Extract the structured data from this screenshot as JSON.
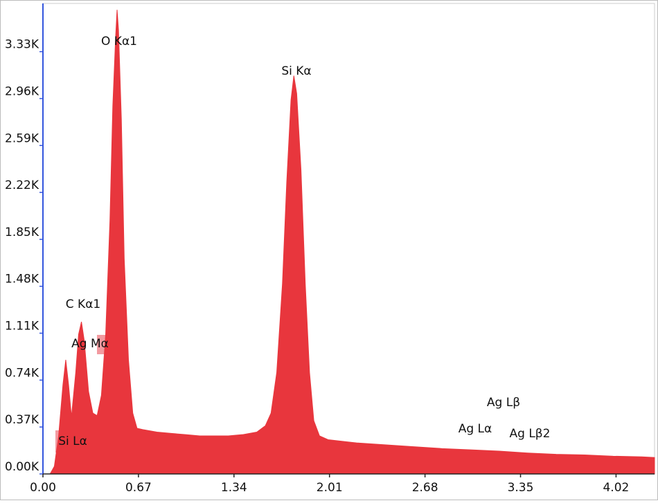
{
  "chart_data": {
    "type": "area",
    "color": "#e8363d",
    "x": [
      0,
      0.05,
      0.08,
      0.11,
      0.14,
      0.16,
      0.18,
      0.2,
      0.23,
      0.25,
      0.27,
      0.29,
      0.32,
      0.35,
      0.38,
      0.41,
      0.44,
      0.47,
      0.49,
      0.51,
      0.52,
      0.53,
      0.55,
      0.57,
      0.6,
      0.63,
      0.66,
      0.7,
      0.8,
      0.9,
      1.0,
      1.1,
      1.2,
      1.3,
      1.4,
      1.5,
      1.56,
      1.6,
      1.64,
      1.68,
      1.71,
      1.74,
      1.76,
      1.78,
      1.81,
      1.84,
      1.87,
      1.9,
      1.94,
      2.0,
      2.2,
      2.4,
      2.6,
      2.8,
      3.0,
      3.2,
      3.4,
      3.6,
      3.8,
      4.0,
      4.2,
      4.29
    ],
    "values": [
      0,
      0,
      60,
      300,
      700,
      900,
      700,
      450,
      800,
      1100,
      1200,
      1050,
      650,
      480,
      460,
      620,
      1100,
      2000,
      2900,
      3450,
      3660,
      3500,
      2800,
      1700,
      900,
      480,
      360,
      350,
      330,
      320,
      310,
      300,
      300,
      300,
      310,
      330,
      380,
      480,
      800,
      1500,
      2300,
      2950,
      3140,
      3000,
      2400,
      1500,
      800,
      420,
      300,
      270,
      245,
      230,
      215,
      200,
      190,
      180,
      165,
      155,
      150,
      140,
      135,
      130
    ],
    "xlim": [
      0,
      4.29
    ],
    "ylim": [
      0,
      3710
    ],
    "xticks": [
      {
        "value": 0,
        "label": "0.00"
      },
      0.67,
      1.34,
      2.01,
      2.68,
      3.35,
      4.02
    ],
    "yticks": [
      {
        "value": 0,
        "label": "0.00K"
      },
      {
        "value": 370,
        "label": "0.37K"
      },
      {
        "value": 740,
        "label": "0.74K"
      },
      {
        "value": 1110,
        "label": "1.11K"
      },
      {
        "value": 1480,
        "label": "1.48K"
      },
      {
        "value": 1850,
        "label": "1.85K"
      },
      {
        "value": 2220,
        "label": "2.22K"
      },
      {
        "value": 2590,
        "label": "2.59K"
      },
      {
        "value": 2960,
        "label": "2.96K"
      },
      {
        "value": 3330,
        "label": "3.33K"
      }
    ],
    "annotations": [
      "O  Kα1",
      "Si Kα",
      "C  Kα1",
      "Ag Mα",
      "Si Lα",
      "Ag Lβ",
      "Ag Lα",
      "Ag Lβ2"
    ]
  }
}
